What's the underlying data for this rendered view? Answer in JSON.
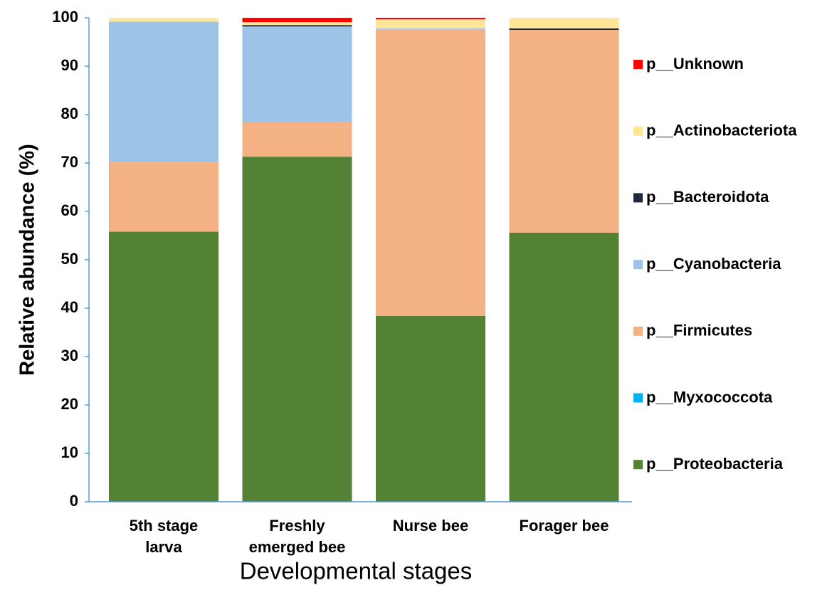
{
  "chart_data": {
    "type": "stacked_bar",
    "x_label": "Developmental stages",
    "y_label": "Relative abundance (%)",
    "categories": [
      "5th stage\nlarva",
      "Freshly\nemerged bee",
      "Nurse bee",
      "Forager bee"
    ],
    "ylim": [
      0,
      100
    ],
    "yticks": [
      0,
      10,
      20,
      30,
      40,
      50,
      60,
      70,
      80,
      90,
      100
    ],
    "legend": "right",
    "series": [
      {
        "name": "p__Proteobacteria",
        "color": "#548235",
        "values": [
          55.8,
          71.3,
          38.4,
          55.6
        ]
      },
      {
        "name": "p__Myxococcota",
        "color": "#00b0f0",
        "values": [
          0,
          0,
          0,
          0
        ]
      },
      {
        "name": "p__Firmicutes",
        "color": "#f4b183",
        "values": [
          14.4,
          7.2,
          59.2,
          41.9
        ]
      },
      {
        "name": "p__Cyanobacteria",
        "color": "#9dc3e6",
        "values": [
          29.0,
          19.7,
          0.2,
          0
        ]
      },
      {
        "name": "p__Bacteroidota",
        "color": "#1f2a3c",
        "values": [
          0,
          0.3,
          0,
          0.3
        ]
      },
      {
        "name": "p__Actinobacteriota",
        "color": "#ffe699",
        "values": [
          0.8,
          0.6,
          1.9,
          2.2
        ]
      },
      {
        "name": "p__Unknown",
        "color": "#ff0000",
        "values": [
          0,
          0.9,
          0.3,
          0
        ]
      }
    ]
  }
}
